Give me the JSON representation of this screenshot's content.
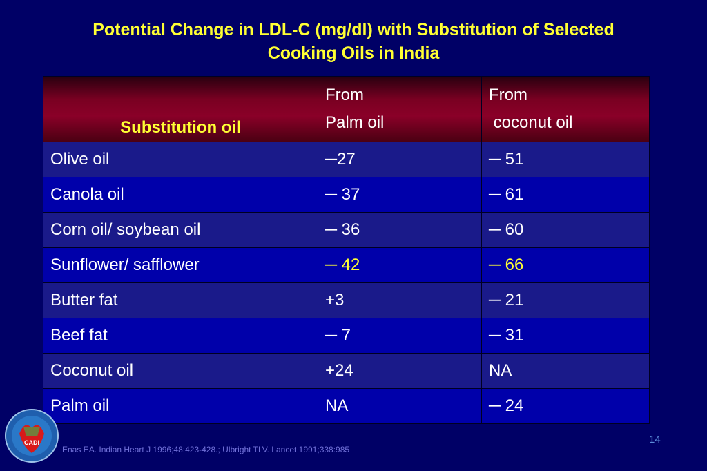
{
  "slide": {
    "title_line1": "Potential Change in LDL-C (mg/dl) with Substitution of Selected",
    "title_line2": "Cooking  Oils in India",
    "page_number": "14",
    "citation": "Enas EA. Indian Heart J 1996;48:423-428.; Ulbright TLV. Lancet 1991;338:985",
    "logo_text": "CADI"
  },
  "table": {
    "headers": {
      "col1": "Substitution oil",
      "col2_line1": "From",
      "col2_line2": "Palm oil",
      "col3_line1": "From",
      "col3_line2": " coconut oil"
    },
    "rows": [
      {
        "oil": "Olive oil",
        "palm": "─27",
        "coconut": "─ 51"
      },
      {
        "oil": "Canola oil",
        "palm": "─ 37",
        "coconut": "─ 61"
      },
      {
        "oil": "Corn oil/ soybean oil",
        "palm": "─ 36",
        "coconut": "─ 60"
      },
      {
        "oil": "Sunflower/ safflower",
        "palm": "─ 42",
        "coconut": "─ 66"
      },
      {
        "oil": "Butter fat",
        "palm": "+3",
        "coconut": "─ 21"
      },
      {
        "oil": "Beef fat",
        "palm": "─ 7",
        "coconut": "─ 31"
      },
      {
        "oil": "Coconut oil",
        "palm": "+24",
        "coconut": "NA"
      },
      {
        "oil": "Palm oil",
        "palm": "NA",
        "coconut": "─ 24"
      }
    ],
    "highlight_color": "#ffff33"
  }
}
